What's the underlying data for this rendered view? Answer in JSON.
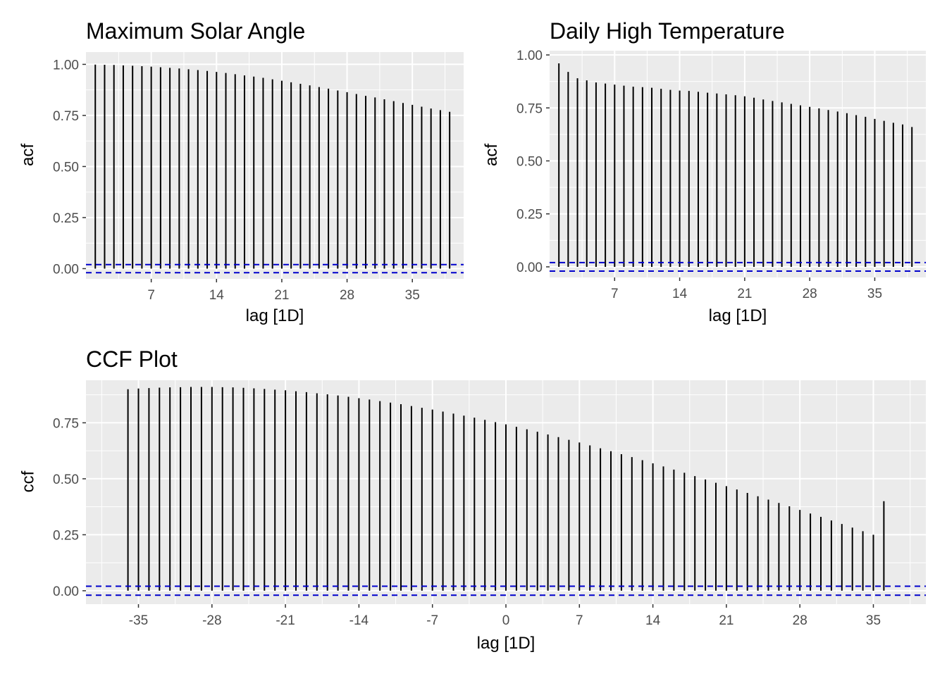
{
  "colors": {
    "panel_bg": "#ebebeb",
    "grid": "#ffffff",
    "bar": "#000000",
    "ci": "#0000cc",
    "tick_text": "#4d4d4d"
  },
  "chart_data": [
    {
      "type": "bar",
      "title": "Maximum Solar Angle",
      "xlabel": "lag [1D]",
      "ylabel": "acf",
      "xlim": [
        0,
        40.5
      ],
      "ylim": [
        -0.05,
        1.06
      ],
      "x_ticks": [
        7,
        14,
        21,
        28,
        35
      ],
      "y_ticks": [
        0.0,
        0.25,
        0.5,
        0.75,
        1.0
      ],
      "y_tick_labels": [
        "0.00",
        "0.25",
        "0.50",
        "0.75",
        "1.00"
      ],
      "ci": 0.02,
      "x": [
        1,
        2,
        3,
        4,
        5,
        6,
        7,
        8,
        9,
        10,
        11,
        12,
        13,
        14,
        15,
        16,
        17,
        18,
        19,
        20,
        21,
        22,
        23,
        24,
        25,
        26,
        27,
        28,
        29,
        30,
        31,
        32,
        33,
        34,
        35,
        36,
        37,
        38,
        39
      ],
      "values": [
        0.999,
        0.998,
        0.997,
        0.995,
        0.993,
        0.991,
        0.989,
        0.986,
        0.983,
        0.98,
        0.976,
        0.972,
        0.968,
        0.963,
        0.958,
        0.952,
        0.946,
        0.94,
        0.934,
        0.927,
        0.92,
        0.912,
        0.905,
        0.897,
        0.889,
        0.881,
        0.872,
        0.864,
        0.855,
        0.846,
        0.838,
        0.829,
        0.82,
        0.811,
        0.802,
        0.793,
        0.784,
        0.776,
        0.768
      ]
    },
    {
      "type": "bar",
      "title": "Daily High Temperature",
      "xlabel": "lag [1D]",
      "ylabel": "acf",
      "xlim": [
        0,
        40.5
      ],
      "ylim": [
        -0.05,
        1.02
      ],
      "x_ticks": [
        7,
        14,
        21,
        28,
        35
      ],
      "y_ticks": [
        0.0,
        0.25,
        0.5,
        0.75,
        1.0
      ],
      "y_tick_labels": [
        "0.00",
        "0.25",
        "0.50",
        "0.75",
        "1.00"
      ],
      "ci": 0.02,
      "x": [
        1,
        2,
        3,
        4,
        5,
        6,
        7,
        8,
        9,
        10,
        11,
        12,
        13,
        14,
        15,
        16,
        17,
        18,
        19,
        20,
        21,
        22,
        23,
        24,
        25,
        26,
        27,
        28,
        29,
        30,
        31,
        32,
        33,
        34,
        35,
        36,
        37,
        38,
        39
      ],
      "values": [
        0.96,
        0.92,
        0.89,
        0.88,
        0.87,
        0.865,
        0.86,
        0.855,
        0.85,
        0.848,
        0.845,
        0.84,
        0.835,
        0.832,
        0.83,
        0.826,
        0.822,
        0.818,
        0.814,
        0.81,
        0.805,
        0.798,
        0.79,
        0.783,
        0.776,
        0.769,
        0.762,
        0.755,
        0.748,
        0.74,
        0.733,
        0.725,
        0.716,
        0.708,
        0.698,
        0.689,
        0.68,
        0.672,
        0.66
      ]
    },
    {
      "type": "bar",
      "title": "CCF Plot",
      "xlabel": "lag [1D]",
      "ylabel": "ccf",
      "xlim": [
        -40,
        40
      ],
      "ylim": [
        -0.06,
        0.94
      ],
      "x_ticks": [
        -35,
        -28,
        -21,
        -14,
        -7,
        0,
        7,
        14,
        21,
        28,
        35
      ],
      "y_ticks": [
        0.0,
        0.25,
        0.5,
        0.75
      ],
      "y_tick_labels": [
        "0.00",
        "0.25",
        "0.50",
        "0.75"
      ],
      "ci": 0.02,
      "x": [
        -36,
        -35,
        -34,
        -33,
        -32,
        -31,
        -30,
        -29,
        -28,
        -27,
        -26,
        -25,
        -24,
        -23,
        -22,
        -21,
        -20,
        -19,
        -18,
        -17,
        -16,
        -15,
        -14,
        -13,
        -12,
        -11,
        -10,
        -9,
        -8,
        -7,
        -6,
        -5,
        -4,
        -3,
        -2,
        -1,
        0,
        1,
        2,
        3,
        4,
        5,
        6,
        7,
        8,
        9,
        10,
        11,
        12,
        13,
        14,
        15,
        16,
        17,
        18,
        19,
        20,
        21,
        22,
        23,
        24,
        25,
        26,
        27,
        28,
        29,
        30,
        31,
        32,
        33,
        34,
        35,
        36
      ],
      "values": [
        0.9,
        0.903,
        0.905,
        0.907,
        0.908,
        0.909,
        0.91,
        0.91,
        0.91,
        0.909,
        0.908,
        0.906,
        0.904,
        0.901,
        0.898,
        0.895,
        0.891,
        0.887,
        0.882,
        0.877,
        0.872,
        0.866,
        0.86,
        0.854,
        0.847,
        0.84,
        0.833,
        0.825,
        0.817,
        0.809,
        0.8,
        0.791,
        0.782,
        0.773,
        0.763,
        0.753,
        0.743,
        0.732,
        0.721,
        0.71,
        0.698,
        0.686,
        0.674,
        0.662,
        0.649,
        0.636,
        0.623,
        0.61,
        0.597,
        0.583,
        0.569,
        0.555,
        0.541,
        0.527,
        0.512,
        0.497,
        0.482,
        0.467,
        0.452,
        0.437,
        0.422,
        0.407,
        0.392,
        0.377,
        0.361,
        0.345,
        0.33,
        0.314,
        0.298,
        0.282,
        0.266,
        0.25,
        0.4
      ]
    }
  ]
}
